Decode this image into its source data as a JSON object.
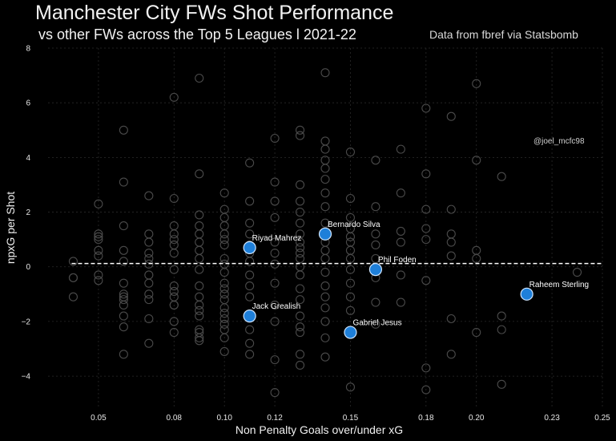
{
  "chart_data": {
    "type": "scatter",
    "title": "Manchester City FWs Shot Performance",
    "subtitle": "vs other FWs across the Top 5 Leagues l 2021-22",
    "source": "Data from fbref via Statsbomb",
    "credit": "@joel_mcfc98",
    "xlabel": "Non Penalty Goals over/under xG",
    "ylabel": "npxG per Shot",
    "xlim": [
      0.03,
      0.25
    ],
    "ylim": [
      -5.2,
      8
    ],
    "x_ticks": [
      0.05,
      0.08,
      0.1,
      0.12,
      0.15,
      0.18,
      0.2,
      0.23,
      0.25
    ],
    "x_tick_labels": [
      "0.05",
      "0.08",
      "0.10",
      "0.12",
      "0.15",
      "0.18",
      "0.20",
      "0.23",
      "0.25"
    ],
    "y_ticks": [
      -4,
      -2,
      0,
      2,
      4,
      6,
      8
    ],
    "y_tick_labels": [
      "−4",
      "−2",
      "0",
      "2",
      "4",
      "6",
      "8"
    ],
    "mean_line_y": 0.12,
    "grid": true,
    "colors": {
      "background": "#000000",
      "other": "#4a4a4a",
      "highlight": "#1e7fd9",
      "mean_line": "#ffffff"
    },
    "series": [
      {
        "role": "other",
        "x": [
          0.04,
          0.04,
          0.04,
          0.04,
          0.05,
          0.05,
          0.05,
          0.05,
          0.05,
          0.05,
          0.05,
          0.05,
          0.06,
          0.06,
          0.06,
          0.06,
          0.06,
          0.06,
          0.06,
          0.06,
          0.06,
          0.06,
          0.06,
          0.06,
          0.06,
          0.07,
          0.07,
          0.07,
          0.07,
          0.07,
          0.07,
          0.07,
          0.07,
          0.07,
          0.07,
          0.07,
          0.07,
          0.08,
          0.08,
          0.08,
          0.08,
          0.08,
          0.08,
          0.08,
          0.08,
          0.08,
          0.08,
          0.08,
          0.08,
          0.08,
          0.08,
          0.08,
          0.09,
          0.09,
          0.09,
          0.09,
          0.09,
          0.09,
          0.09,
          0.09,
          0.09,
          0.09,
          0.09,
          0.09,
          0.09,
          0.09,
          0.09,
          0.09,
          0.09,
          0.09,
          0.1,
          0.1,
          0.1,
          0.1,
          0.1,
          0.1,
          0.1,
          0.1,
          0.1,
          0.1,
          0.1,
          0.1,
          0.1,
          0.1,
          0.1,
          0.1,
          0.1,
          0.1,
          0.1,
          0.1,
          0.1,
          0.11,
          0.11,
          0.11,
          0.11,
          0.11,
          0.11,
          0.11,
          0.11,
          0.11,
          0.11,
          0.11,
          0.11,
          0.11,
          0.12,
          0.12,
          0.12,
          0.12,
          0.12,
          0.12,
          0.12,
          0.12,
          0.12,
          0.12,
          0.12,
          0.12,
          0.13,
          0.13,
          0.13,
          0.13,
          0.13,
          0.13,
          0.13,
          0.13,
          0.13,
          0.13,
          0.13,
          0.13,
          0.13,
          0.13,
          0.13,
          0.13,
          0.13,
          0.13,
          0.13,
          0.13,
          0.14,
          0.14,
          0.14,
          0.14,
          0.14,
          0.14,
          0.14,
          0.14,
          0.14,
          0.14,
          0.14,
          0.14,
          0.14,
          0.14,
          0.14,
          0.14,
          0.14,
          0.14,
          0.14,
          0.14,
          0.15,
          0.15,
          0.15,
          0.15,
          0.15,
          0.15,
          0.15,
          0.15,
          0.15,
          0.15,
          0.15,
          0.15,
          0.15,
          0.16,
          0.16,
          0.16,
          0.16,
          0.16,
          0.16,
          0.16,
          0.16,
          0.17,
          0.17,
          0.17,
          0.17,
          0.17,
          0.17,
          0.18,
          0.18,
          0.18,
          0.18,
          0.18,
          0.18,
          0.18,
          0.18,
          0.19,
          0.19,
          0.19,
          0.19,
          0.19,
          0.19,
          0.19,
          0.2,
          0.2,
          0.2,
          0.2,
          0.2,
          0.21,
          0.21,
          0.21,
          0.21,
          0.24
        ],
        "y": [
          0.2,
          -0.4,
          -0.4,
          -1.1,
          2.3,
          1.2,
          1.0,
          0.6,
          0.4,
          -0.3,
          -0.5,
          1.1,
          5.0,
          3.1,
          1.5,
          0.6,
          0.2,
          -0.6,
          -1.1,
          -1.2,
          -1.4,
          -1.8,
          -2.2,
          -3.2,
          -1.0,
          2.6,
          1.2,
          0.9,
          0.5,
          0.3,
          0.1,
          -0.3,
          -0.6,
          -1.0,
          -1.2,
          -1.9,
          -2.8,
          6.2,
          2.5,
          1.5,
          1.2,
          1.0,
          0.8,
          0.5,
          -0.1,
          -0.7,
          -0.9,
          -1.1,
          -1.4,
          -1.4,
          -2.0,
          -2.4,
          6.9,
          3.4,
          1.9,
          1.5,
          1.2,
          0.9,
          0.6,
          0.3,
          -0.1,
          -0.7,
          -1.1,
          -1.4,
          -1.8,
          -2.3,
          -2.4,
          -2.6,
          -2.7,
          -1.6,
          2.7,
          2.1,
          1.8,
          1.5,
          1.2,
          1.0,
          0.8,
          0.3,
          0.1,
          -0.2,
          -0.6,
          -0.8,
          -1.0,
          -1.2,
          -1.5,
          -1.7,
          -1.9,
          -2.1,
          -2.3,
          -2.6,
          -3.1,
          3.8,
          2.4,
          1.6,
          1.2,
          0.8,
          0.5,
          0.2,
          -0.3,
          -0.7,
          -1.1,
          -2.3,
          -2.8,
          -3.2,
          4.7,
          3.1,
          2.4,
          1.8,
          0.9,
          0.5,
          0.1,
          -0.6,
          -1.4,
          -2.0,
          -3.4,
          -4.6,
          5.0,
          4.8,
          3.0,
          2.4,
          2.0,
          1.6,
          1.2,
          0.9,
          0.7,
          0.5,
          0.3,
          0.0,
          -0.3,
          -0.8,
          -1.2,
          -1.8,
          -2.2,
          -2.4,
          -3.2,
          -3.6,
          7.1,
          4.6,
          4.3,
          3.9,
          3.6,
          3.2,
          2.7,
          2.2,
          1.6,
          1.2,
          0.9,
          0.6,
          0.3,
          -0.2,
          -0.7,
          -1.1,
          -1.5,
          -2.0,
          -2.6,
          -3.3,
          4.2,
          2.5,
          1.8,
          1.4,
          1.1,
          0.9,
          0.6,
          0.3,
          -0.1,
          -0.6,
          -1.1,
          -1.6,
          -4.4,
          3.9,
          2.2,
          1.2,
          0.8,
          0.3,
          -0.4,
          -1.3,
          -2.1,
          4.3,
          2.7,
          1.3,
          0.9,
          -0.3,
          -1.3,
          5.8,
          3.4,
          2.1,
          1.4,
          1.0,
          -0.5,
          -3.7,
          -4.5,
          5.5,
          2.1,
          1.2,
          0.9,
          0.4,
          -1.9,
          -3.2,
          6.7,
          3.9,
          0.6,
          0.3,
          -2.4,
          3.3,
          -2.3,
          -4.3,
          -1.8,
          -0.2
        ]
      },
      {
        "role": "highlight",
        "points": [
          {
            "name": "Riyad Mahrez",
            "x": 0.11,
            "y": 0.7
          },
          {
            "name": "Bernardo Silva",
            "x": 0.14,
            "y": 1.2
          },
          {
            "name": "Phil Foden",
            "x": 0.16,
            "y": -0.1
          },
          {
            "name": "Raheem Sterling",
            "x": 0.22,
            "y": -1.0
          },
          {
            "name": "Jack Grealish",
            "x": 0.11,
            "y": -1.8
          },
          {
            "name": "Gabriel Jesus",
            "x": 0.15,
            "y": -2.4
          }
        ]
      }
    ]
  }
}
